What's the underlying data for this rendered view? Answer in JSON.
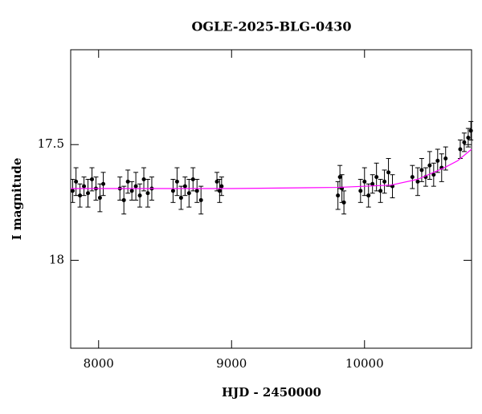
{
  "chart_data": {
    "type": "scatter",
    "title": "OGLE-2025-BLG-0430",
    "x_label": "HJD - 2450000",
    "y_label": "I magnitude",
    "xlim": [
      7790,
      10805
    ],
    "ylim": [
      17.09,
      18.38
    ],
    "y_inverted": true,
    "xticks": [
      8000,
      9000,
      10000
    ],
    "yticks": [
      17.5,
      18
    ],
    "series": [
      {
        "type": "scatter",
        "color": "#000000",
        "x": [
          7805,
          7830,
          7860,
          7890,
          7920,
          7950,
          7980,
          8010,
          8035,
          8160,
          8190,
          8220,
          8250,
          8280,
          8310,
          8340,
          8370,
          8400,
          8560,
          8590,
          8620,
          8650,
          8680,
          8710,
          8740,
          8770,
          8890,
          8910,
          8925,
          9800,
          9815,
          9830,
          9845,
          9970,
          10000,
          10030,
          10060,
          10090,
          10120,
          10150,
          10180,
          10210,
          10360,
          10400,
          10430,
          10460,
          10490,
          10520,
          10550,
          10580,
          10610,
          10720,
          10750,
          10780,
          10800
        ],
        "values": [
          17.7,
          17.66,
          17.72,
          17.68,
          17.71,
          17.65,
          17.69,
          17.73,
          17.67,
          17.69,
          17.74,
          17.66,
          17.7,
          17.68,
          17.72,
          17.65,
          17.71,
          17.69,
          17.7,
          17.66,
          17.73,
          17.68,
          17.71,
          17.65,
          17.7,
          17.74,
          17.66,
          17.7,
          17.68,
          17.72,
          17.64,
          17.69,
          17.75,
          17.7,
          17.66,
          17.72,
          17.67,
          17.64,
          17.7,
          17.66,
          17.62,
          17.68,
          17.64,
          17.66,
          17.61,
          17.64,
          17.59,
          17.63,
          17.57,
          17.6,
          17.56,
          17.52,
          17.49,
          17.47,
          17.44
        ],
        "errors": [
          0.05,
          0.06,
          0.05,
          0.04,
          0.06,
          0.05,
          0.05,
          0.06,
          0.05,
          0.05,
          0.06,
          0.05,
          0.04,
          0.06,
          0.05,
          0.05,
          0.06,
          0.05,
          0.05,
          0.06,
          0.05,
          0.04,
          0.06,
          0.05,
          0.05,
          0.06,
          0.04,
          0.05,
          0.04,
          0.06,
          0.05,
          0.06,
          0.05,
          0.05,
          0.06,
          0.05,
          0.04,
          0.06,
          0.05,
          0.05,
          0.06,
          0.05,
          0.05,
          0.06,
          0.05,
          0.04,
          0.06,
          0.05,
          0.05,
          0.06,
          0.05,
          0.04,
          0.04,
          0.04,
          0.04
        ]
      },
      {
        "type": "line",
        "color": "#ff00ff",
        "x": [
          7790,
          9000,
          9800,
          10200,
          10400,
          10600,
          10700,
          10805
        ],
        "values": [
          17.69,
          17.69,
          17.685,
          17.675,
          17.65,
          17.6,
          17.57,
          17.52
        ]
      }
    ]
  }
}
